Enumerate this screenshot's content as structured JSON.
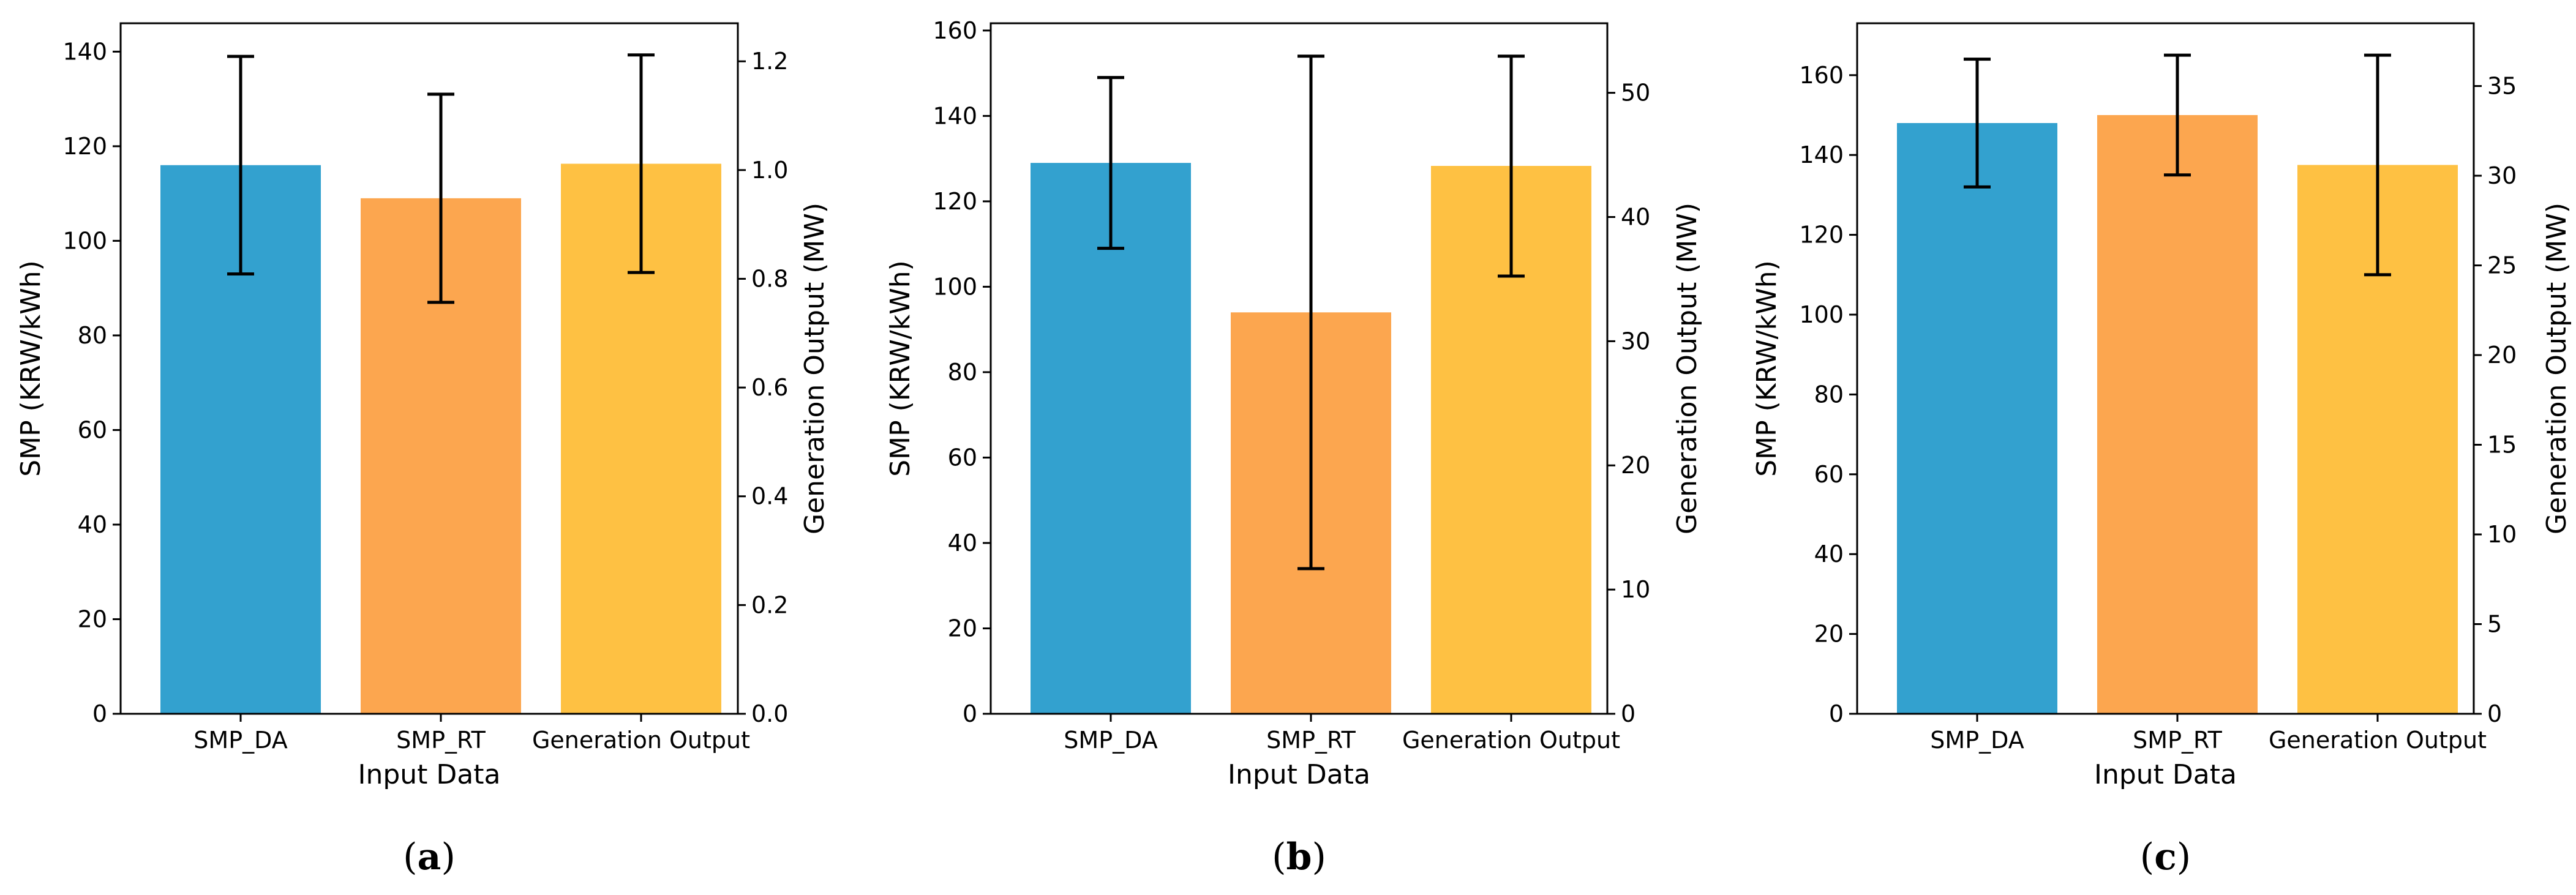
{
  "colors": {
    "bar_colors": [
      "#33a1cf",
      "#fca64f",
      "#fec143"
    ],
    "errorbar": "#000000",
    "axis": "#000000",
    "background": "#ffffff"
  },
  "chart_data": [
    {
      "type": "bar",
      "caption_letter": "a",
      "categories": [
        "SMP_DA",
        "SMP_RT",
        "Generation Output"
      ],
      "values": [
        116,
        109,
        116.3
      ],
      "error_low": [
        93,
        87,
        93.3
      ],
      "error_high": [
        139,
        131,
        139.3
      ],
      "xlabel": "Input Data",
      "ylabel": "SMP (KRW/kWh)",
      "ylim": [
        0,
        146
      ],
      "yticks": [
        0,
        20,
        40,
        60,
        80,
        100,
        120,
        140
      ],
      "ytick_labels": [
        "0",
        "20",
        "40",
        "60",
        "80",
        "100",
        "120",
        "140"
      ],
      "y2label": "Generation Output (MW)",
      "y2lim": [
        0,
        1.27
      ],
      "y2ticks": [
        0.0,
        0.2,
        0.4,
        0.6,
        0.8,
        1.0,
        1.2
      ],
      "y2tick_labels": [
        "0.0",
        "0.2",
        "0.4",
        "0.6",
        "0.8",
        "1.0",
        "1.2"
      ]
    },
    {
      "type": "bar",
      "caption_letter": "b",
      "categories": [
        "SMP_DA",
        "SMP_RT",
        "Generation Output"
      ],
      "values": [
        129,
        94,
        128.3
      ],
      "error_low": [
        109,
        34,
        102.5
      ],
      "error_high": [
        149,
        154,
        154
      ],
      "xlabel": "Input Data",
      "ylabel": "SMP (KRW/kWh)",
      "ylim": [
        0,
        161.7
      ],
      "yticks": [
        0,
        20,
        40,
        60,
        80,
        100,
        120,
        140,
        160
      ],
      "ytick_labels": [
        "0",
        "20",
        "40",
        "60",
        "80",
        "100",
        "120",
        "140",
        "160"
      ],
      "y2label": "Generation Output (MW)",
      "y2lim": [
        0,
        55.6
      ],
      "y2ticks": [
        0,
        10,
        20,
        30,
        40,
        50
      ],
      "y2tick_labels": [
        "0",
        "10",
        "20",
        "30",
        "40",
        "50"
      ]
    },
    {
      "type": "bar",
      "caption_letter": "c",
      "categories": [
        "SMP_DA",
        "SMP_RT",
        "Generation Output"
      ],
      "values": [
        148,
        150,
        137.5
      ],
      "error_low": [
        132,
        135,
        110
      ],
      "error_high": [
        164,
        165,
        165
      ],
      "xlabel": "Input Data",
      "ylabel": "SMP (KRW/kWh)",
      "ylim": [
        0,
        173
      ],
      "yticks": [
        0,
        20,
        40,
        60,
        80,
        100,
        120,
        140,
        160
      ],
      "ytick_labels": [
        "0",
        "20",
        "40",
        "60",
        "80",
        "100",
        "120",
        "140",
        "160"
      ],
      "y2label": "Generation Output (MW)",
      "y2lim": [
        0,
        38.5
      ],
      "y2ticks": [
        0,
        5,
        10,
        15,
        20,
        25,
        30,
        35
      ],
      "y2tick_labels": [
        "0",
        "5",
        "10",
        "15",
        "20",
        "25",
        "30",
        "35"
      ]
    }
  ]
}
